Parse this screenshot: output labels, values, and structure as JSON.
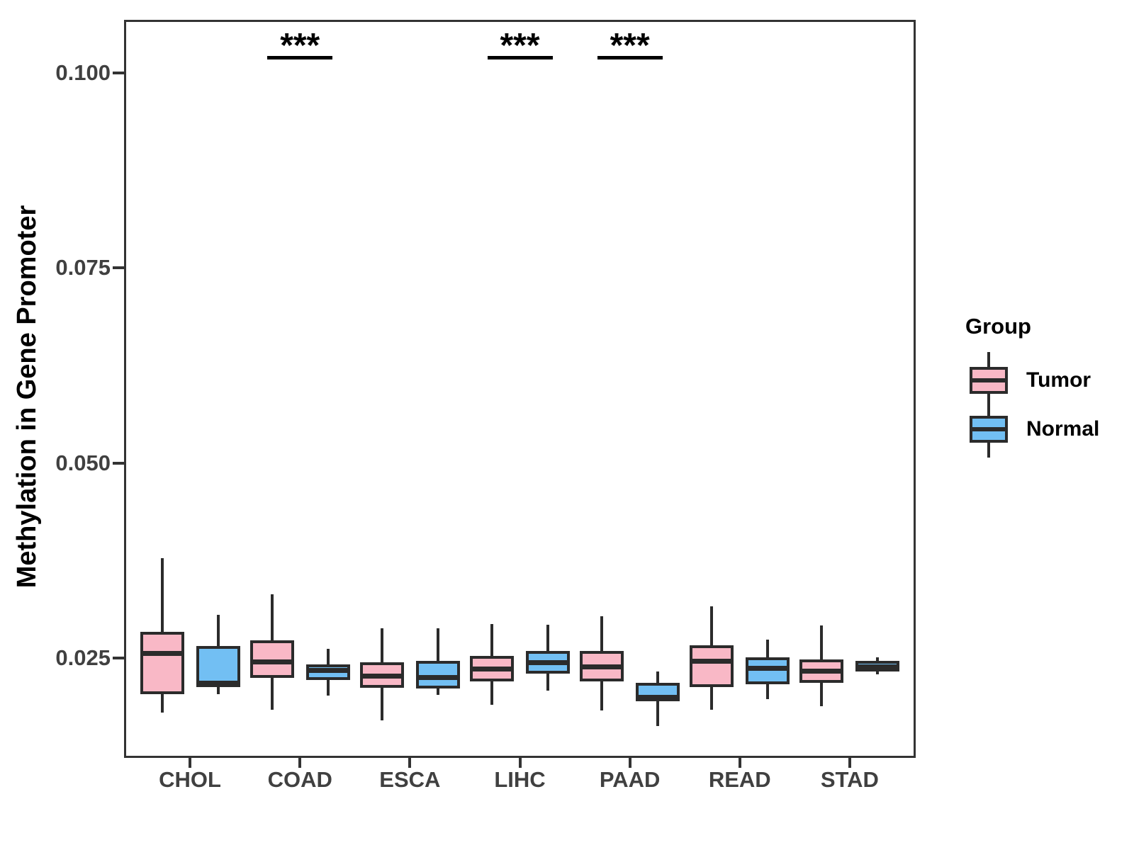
{
  "chart_data": {
    "type": "boxplot",
    "title": "",
    "xlabel": "",
    "ylabel": "Methylation in Gene Promoter",
    "categories": [
      "CHOL",
      "COAD",
      "ESCA",
      "LIHC",
      "PAAD",
      "READ",
      "STAD"
    ],
    "y_ticks": [
      {
        "value": 0.025,
        "label": "0.025"
      },
      {
        "value": 0.05,
        "label": "0.050"
      },
      {
        "value": 0.075,
        "label": "0.075"
      },
      {
        "value": 0.1,
        "label": "0.100"
      }
    ],
    "ylim": [
      0.0122,
      0.1068
    ],
    "grid": "off",
    "legend": {
      "title": "Group",
      "position": "right",
      "entries": [
        {
          "label": "Tumor",
          "color": "#F9B8C6"
        },
        {
          "label": "Normal",
          "color": "#72BFF3"
        }
      ]
    },
    "series": [
      {
        "name": "Tumor",
        "fill": "#F9B8C6",
        "boxes": [
          {
            "category": "CHOL",
            "whisker_low": 0.018,
            "q1": 0.0204,
            "median": 0.0256,
            "q3": 0.0284,
            "whisker_high": 0.0378
          },
          {
            "category": "COAD",
            "whisker_low": 0.0184,
            "q1": 0.0225,
            "median": 0.0245,
            "q3": 0.0273,
            "whisker_high": 0.0332
          },
          {
            "category": "ESCA",
            "whisker_low": 0.017,
            "q1": 0.0212,
            "median": 0.0227,
            "q3": 0.0245,
            "whisker_high": 0.0288
          },
          {
            "category": "LIHC",
            "whisker_low": 0.019,
            "q1": 0.022,
            "median": 0.0236,
            "q3": 0.0253,
            "whisker_high": 0.0294
          },
          {
            "category": "PAAD",
            "whisker_low": 0.0183,
            "q1": 0.022,
            "median": 0.0239,
            "q3": 0.0259,
            "whisker_high": 0.0304
          },
          {
            "category": "READ",
            "whisker_low": 0.0184,
            "q1": 0.0213,
            "median": 0.0246,
            "q3": 0.0266,
            "whisker_high": 0.0316
          },
          {
            "category": "STAD",
            "whisker_low": 0.0188,
            "q1": 0.0218,
            "median": 0.0233,
            "q3": 0.0248,
            "whisker_high": 0.0292
          }
        ]
      },
      {
        "name": "Normal",
        "fill": "#72BFF3",
        "boxes": [
          {
            "category": "CHOL",
            "whisker_low": 0.0204,
            "q1": 0.0213,
            "median": 0.0218,
            "q3": 0.0265,
            "whisker_high": 0.0305
          },
          {
            "category": "COAD",
            "whisker_low": 0.0202,
            "q1": 0.0222,
            "median": 0.0234,
            "q3": 0.0242,
            "whisker_high": 0.0262
          },
          {
            "category": "ESCA",
            "whisker_low": 0.0203,
            "q1": 0.0211,
            "median": 0.0225,
            "q3": 0.0246,
            "whisker_high": 0.0288
          },
          {
            "category": "LIHC",
            "whisker_low": 0.0208,
            "q1": 0.023,
            "median": 0.0244,
            "q3": 0.0259,
            "whisker_high": 0.0293
          },
          {
            "category": "PAAD",
            "whisker_low": 0.0163,
            "q1": 0.0195,
            "median": 0.02,
            "q3": 0.0218,
            "whisker_high": 0.0233
          },
          {
            "category": "READ",
            "whisker_low": 0.0197,
            "q1": 0.0216,
            "median": 0.0237,
            "q3": 0.0251,
            "whisker_high": 0.0274
          },
          {
            "category": "STAD",
            "whisker_low": 0.0229,
            "q1": 0.0233,
            "median": 0.0239,
            "q3": 0.0246,
            "whisker_high": 0.0251
          }
        ]
      }
    ],
    "significance": [
      {
        "category": "COAD",
        "label": "***"
      },
      {
        "category": "LIHC",
        "label": "***"
      },
      {
        "category": "PAAD",
        "label": "***"
      }
    ]
  },
  "colors": {
    "tumor_fill": "#F9B8C6",
    "normal_fill": "#72BFF3",
    "box_border": "#2B2B2B",
    "median": "#2B2B2B",
    "axis_text": "#404040",
    "axis_title": "#000000",
    "panel_border": "#333333",
    "significance": "#000000"
  }
}
